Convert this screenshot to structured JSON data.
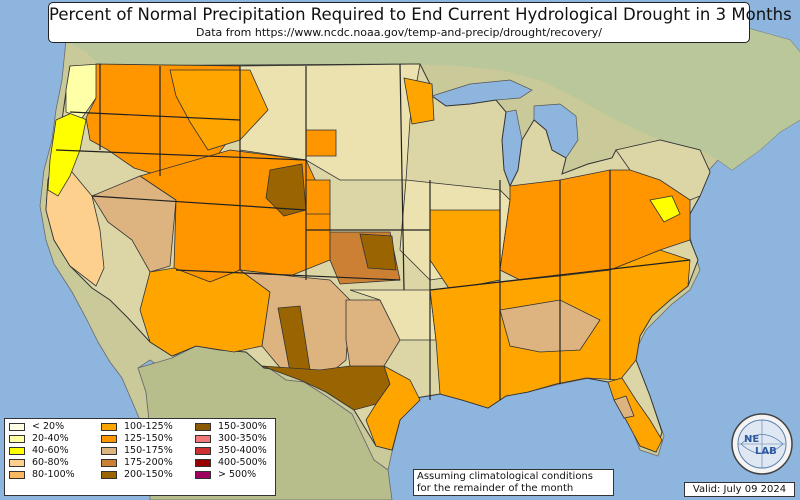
{
  "title": "Percent of Normal Precipitation Required to End Current Hydrological Drought in 3 Months",
  "subtitle": "Data from https://www.ncdc.noaa.gov/temp-and-precip/drought/recovery/",
  "legend": {
    "col1": [
      {
        "label": "< 20%",
        "color": "#ffffe6"
      },
      {
        "label": "20-40%",
        "color": "#ffffa8"
      },
      {
        "label": "40-60%",
        "color": "#ffff00"
      },
      {
        "label": "60-80%",
        "color": "#fdd08e"
      },
      {
        "label": "80-100%",
        "color": "#fcb860"
      }
    ],
    "col2": [
      {
        "label": "100-125%",
        "color": "#ffa500"
      },
      {
        "label": "125-150%",
        "color": "#ff9600"
      },
      {
        "label": "150-175%",
        "color": "#ddb380"
      },
      {
        "label": "175-200%",
        "color": "#cc8033"
      },
      {
        "label": "200-150%",
        "color": "#9a6500"
      }
    ],
    "col3": [
      {
        "label": "150-300%",
        "color": "#8b5a00"
      },
      {
        "label": "300-350%",
        "color": "#f07878"
      },
      {
        "label": "350-400%",
        "color": "#cc3030"
      },
      {
        "label": "400-500%",
        "color": "#990000"
      },
      {
        "label": "> 500%",
        "color": "#a00060"
      }
    ]
  },
  "note": {
    "line1": "Assuming climatological conditions",
    "line2": "for the remainder of the month"
  },
  "valid": "Valid: July 09 2024",
  "logo": {
    "text_top": "NE",
    "text_bottom": "LAB"
  },
  "colors": {
    "ocean": "#8eb5dd",
    "lakes": "#8eb5dd",
    "land": "#d9d6a8",
    "land_green": "#a8c08a"
  }
}
